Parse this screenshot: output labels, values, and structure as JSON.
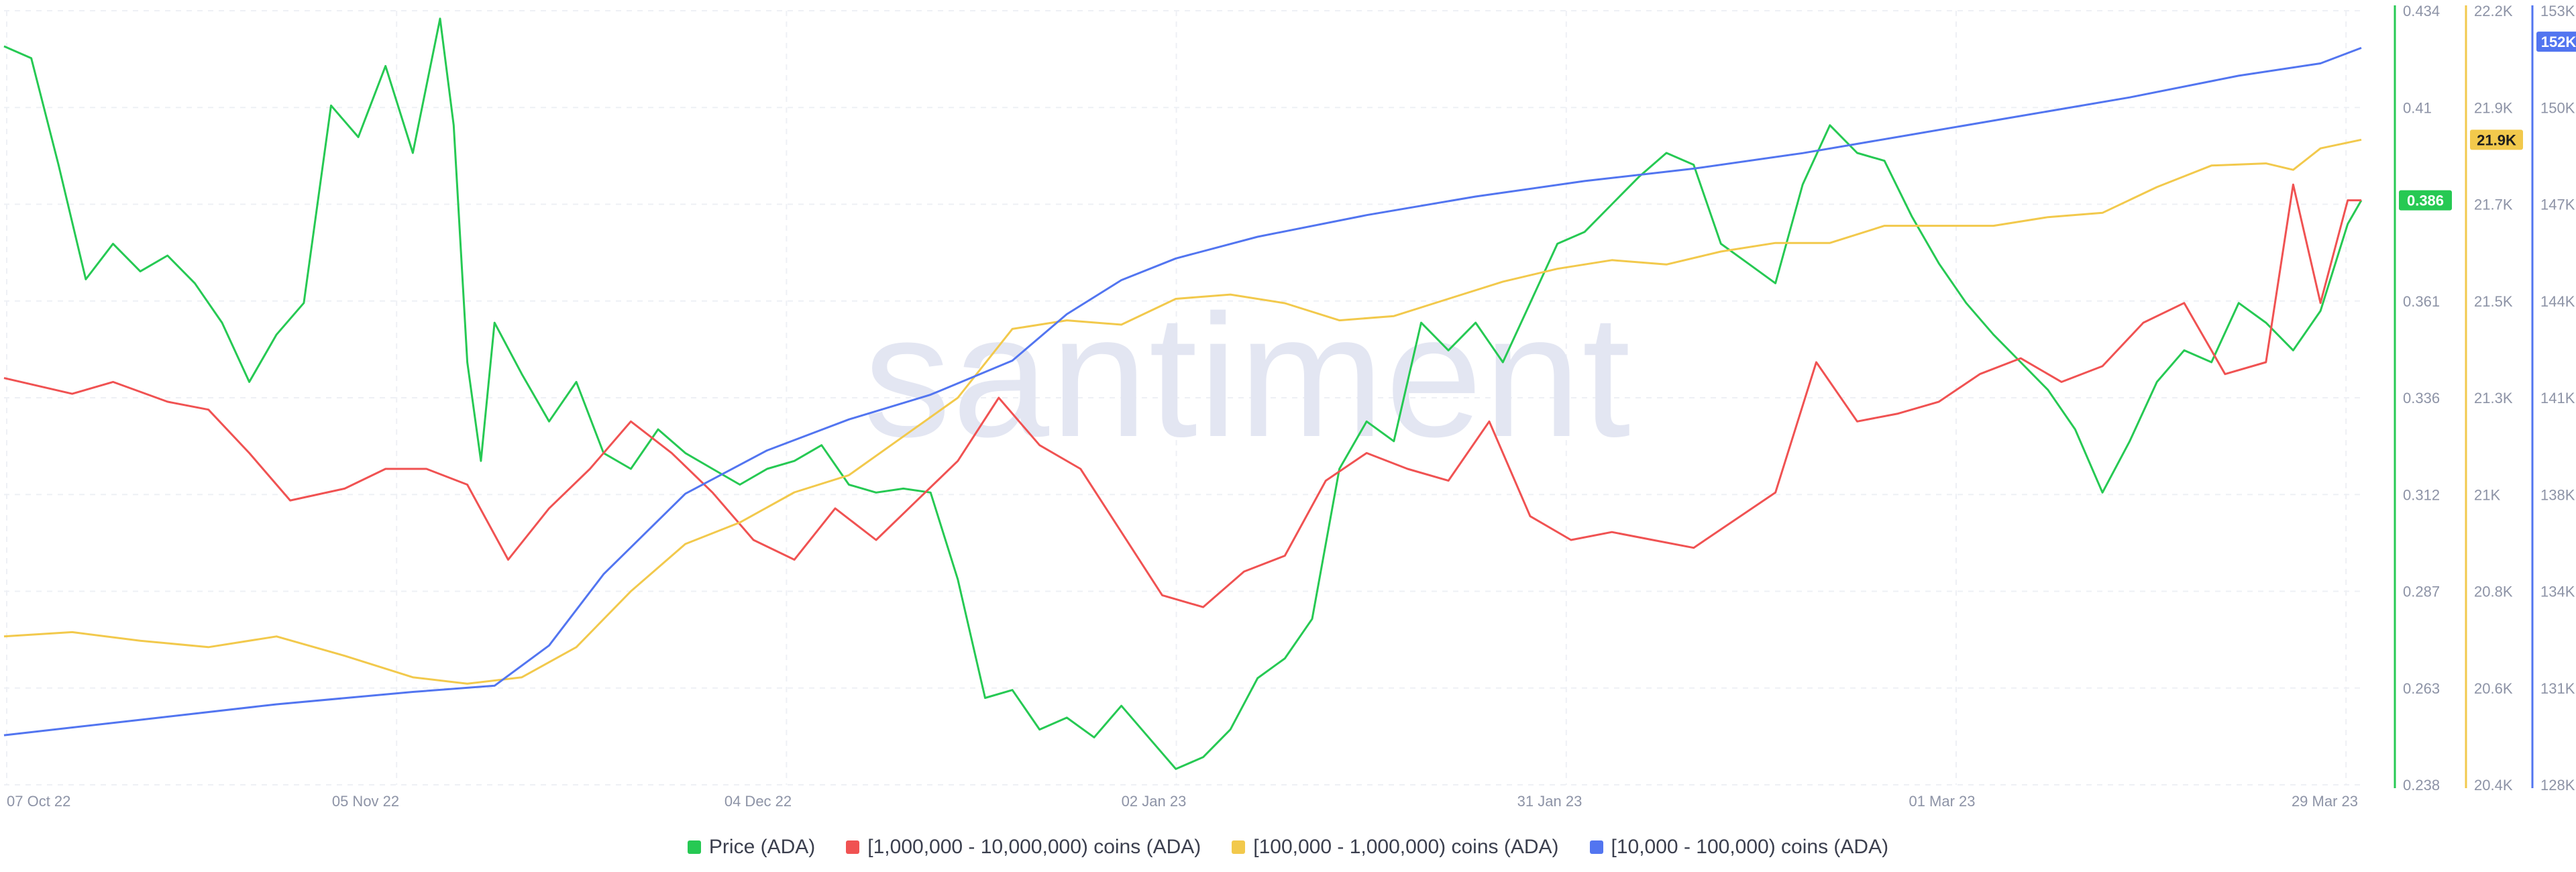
{
  "chart_data": {
    "type": "line",
    "watermark": "santiment",
    "x_ticks": [
      "07 Oct 22",
      "05 Nov 22",
      "04 Dec 22",
      "02 Jan 23",
      "31 Jan 23",
      "01 Mar 23",
      "29 Mar 23"
    ],
    "x_range": [
      "2022-10-07",
      "2023-03-29"
    ],
    "axes": {
      "price": {
        "color": "#26c953",
        "ticks": [
          "0.434",
          "0.41",
          "0.385",
          "0.361",
          "0.336",
          "0.312",
          "0.287",
          "0.263",
          "0.238"
        ],
        "range": [
          0.238,
          0.434
        ],
        "current_value": "0.386"
      },
      "holders_100k_1m": {
        "color": "#f2c94c",
        "ticks": [
          "22.2K",
          "21.9K",
          "21.7K",
          "21.5K",
          "21.3K",
          "21K",
          "20.8K",
          "20.6K",
          "20.4K"
        ],
        "range": [
          20400,
          22200
        ],
        "current_value": "21.9K"
      },
      "holders_10k_100k": {
        "color": "#5275f0",
        "ticks": [
          "153K",
          "150K",
          "147K",
          "144K",
          "141K",
          "138K",
          "134K",
          "131K",
          "128K"
        ],
        "range": [
          128000,
          153000
        ],
        "current_value": "152K"
      }
    },
    "series": [
      {
        "name": "Price (ADA)",
        "color": "#26c953",
        "axis": "price",
        "points": [
          [
            "2022-10-07",
            0.425
          ],
          [
            "2022-10-09",
            0.422
          ],
          [
            "2022-10-11",
            0.395
          ],
          [
            "2022-10-13",
            0.366
          ],
          [
            "2022-10-15",
            0.375
          ],
          [
            "2022-10-17",
            0.368
          ],
          [
            "2022-10-19",
            0.372
          ],
          [
            "2022-10-21",
            0.365
          ],
          [
            "2022-10-23",
            0.355
          ],
          [
            "2022-10-25",
            0.34
          ],
          [
            "2022-10-27",
            0.352
          ],
          [
            "2022-10-29",
            0.36
          ],
          [
            "2022-10-31",
            0.41
          ],
          [
            "2022-11-02",
            0.402
          ],
          [
            "2022-11-04",
            0.42
          ],
          [
            "2022-11-06",
            0.398
          ],
          [
            "2022-11-08",
            0.432
          ],
          [
            "2022-11-09",
            0.405
          ],
          [
            "2022-11-10",
            0.345
          ],
          [
            "2022-11-11",
            0.32
          ],
          [
            "2022-11-12",
            0.355
          ],
          [
            "2022-11-14",
            0.342
          ],
          [
            "2022-11-16",
            0.33
          ],
          [
            "2022-11-18",
            0.34
          ],
          [
            "2022-11-20",
            0.322
          ],
          [
            "2022-11-22",
            0.318
          ],
          [
            "2022-11-24",
            0.328
          ],
          [
            "2022-11-26",
            0.322
          ],
          [
            "2022-11-28",
            0.318
          ],
          [
            "2022-11-30",
            0.314
          ],
          [
            "2022-12-02",
            0.318
          ],
          [
            "2022-12-04",
            0.32
          ],
          [
            "2022-12-06",
            0.324
          ],
          [
            "2022-12-08",
            0.314
          ],
          [
            "2022-12-10",
            0.312
          ],
          [
            "2022-12-12",
            0.313
          ],
          [
            "2022-12-14",
            0.312
          ],
          [
            "2022-12-16",
            0.29
          ],
          [
            "2022-12-18",
            0.26
          ],
          [
            "2022-12-20",
            0.262
          ],
          [
            "2022-12-22",
            0.252
          ],
          [
            "2022-12-24",
            0.255
          ],
          [
            "2022-12-26",
            0.25
          ],
          [
            "2022-12-28",
            0.258
          ],
          [
            "2022-12-30",
            0.25
          ],
          [
            "2023-01-01",
            0.242
          ],
          [
            "2023-01-03",
            0.245
          ],
          [
            "2023-01-05",
            0.252
          ],
          [
            "2023-01-07",
            0.265
          ],
          [
            "2023-01-09",
            0.27
          ],
          [
            "2023-01-11",
            0.28
          ],
          [
            "2023-01-13",
            0.318
          ],
          [
            "2023-01-15",
            0.33
          ],
          [
            "2023-01-17",
            0.325
          ],
          [
            "2023-01-19",
            0.355
          ],
          [
            "2023-01-21",
            0.348
          ],
          [
            "2023-01-23",
            0.355
          ],
          [
            "2023-01-25",
            0.345
          ],
          [
            "2023-01-27",
            0.36
          ],
          [
            "2023-01-29",
            0.375
          ],
          [
            "2023-01-31",
            0.378
          ],
          [
            "2023-02-02",
            0.385
          ],
          [
            "2023-02-04",
            0.392
          ],
          [
            "2023-02-06",
            0.398
          ],
          [
            "2023-02-08",
            0.395
          ],
          [
            "2023-02-10",
            0.375
          ],
          [
            "2023-02-12",
            0.37
          ],
          [
            "2023-02-14",
            0.365
          ],
          [
            "2023-02-16",
            0.39
          ],
          [
            "2023-02-18",
            0.405
          ],
          [
            "2023-02-20",
            0.398
          ],
          [
            "2023-02-22",
            0.396
          ],
          [
            "2023-02-24",
            0.382
          ],
          [
            "2023-02-26",
            0.37
          ],
          [
            "2023-02-28",
            0.36
          ],
          [
            "2023-03-02",
            0.352
          ],
          [
            "2023-03-04",
            0.345
          ],
          [
            "2023-03-06",
            0.338
          ],
          [
            "2023-03-08",
            0.328
          ],
          [
            "2023-03-10",
            0.312
          ],
          [
            "2023-03-12",
            0.325
          ],
          [
            "2023-03-14",
            0.34
          ],
          [
            "2023-03-16",
            0.348
          ],
          [
            "2023-03-18",
            0.345
          ],
          [
            "2023-03-20",
            0.36
          ],
          [
            "2023-03-22",
            0.355
          ],
          [
            "2023-03-24",
            0.348
          ],
          [
            "2023-03-26",
            0.358
          ],
          [
            "2023-03-28",
            0.38
          ],
          [
            "2023-03-29",
            0.386
          ]
        ]
      },
      {
        "name": "[1,000,000 - 10,000,000) coins (ADA)",
        "color": "#f05252",
        "axis": "price",
        "points": [
          [
            "2022-10-07",
            0.341
          ],
          [
            "2022-10-12",
            0.337
          ],
          [
            "2022-10-15",
            0.34
          ],
          [
            "2022-10-19",
            0.335
          ],
          [
            "2022-10-22",
            0.333
          ],
          [
            "2022-10-25",
            0.322
          ],
          [
            "2022-10-28",
            0.31
          ],
          [
            "2022-11-01",
            0.313
          ],
          [
            "2022-11-04",
            0.318
          ],
          [
            "2022-11-07",
            0.318
          ],
          [
            "2022-11-10",
            0.314
          ],
          [
            "2022-11-13",
            0.295
          ],
          [
            "2022-11-16",
            0.308
          ],
          [
            "2022-11-19",
            0.318
          ],
          [
            "2022-11-22",
            0.33
          ],
          [
            "2022-11-25",
            0.322
          ],
          [
            "2022-11-28",
            0.312
          ],
          [
            "2022-12-01",
            0.3
          ],
          [
            "2022-12-04",
            0.295
          ],
          [
            "2022-12-07",
            0.308
          ],
          [
            "2022-12-10",
            0.3
          ],
          [
            "2022-12-13",
            0.31
          ],
          [
            "2022-12-16",
            0.32
          ],
          [
            "2022-12-19",
            0.336
          ],
          [
            "2022-12-22",
            0.324
          ],
          [
            "2022-12-25",
            0.318
          ],
          [
            "2022-12-28",
            0.302
          ],
          [
            "2022-12-31",
            0.286
          ],
          [
            "2023-01-03",
            0.283
          ],
          [
            "2023-01-06",
            0.292
          ],
          [
            "2023-01-09",
            0.296
          ],
          [
            "2023-01-12",
            0.315
          ],
          [
            "2023-01-15",
            0.322
          ],
          [
            "2023-01-18",
            0.318
          ],
          [
            "2023-01-21",
            0.315
          ],
          [
            "2023-01-24",
            0.33
          ],
          [
            "2023-01-27",
            0.306
          ],
          [
            "2023-01-30",
            0.3
          ],
          [
            "2023-02-02",
            0.302
          ],
          [
            "2023-02-05",
            0.3
          ],
          [
            "2023-02-08",
            0.298
          ],
          [
            "2023-02-11",
            0.305
          ],
          [
            "2023-02-14",
            0.312
          ],
          [
            "2023-02-17",
            0.345
          ],
          [
            "2023-02-20",
            0.33
          ],
          [
            "2023-02-23",
            0.332
          ],
          [
            "2023-02-26",
            0.335
          ],
          [
            "2023-03-01",
            0.342
          ],
          [
            "2023-03-04",
            0.346
          ],
          [
            "2023-03-07",
            0.34
          ],
          [
            "2023-03-10",
            0.344
          ],
          [
            "2023-03-13",
            0.355
          ],
          [
            "2023-03-16",
            0.36
          ],
          [
            "2023-03-19",
            0.342
          ],
          [
            "2023-03-22",
            0.345
          ],
          [
            "2023-03-24",
            0.39
          ],
          [
            "2023-03-26",
            0.36
          ],
          [
            "2023-03-28",
            0.386
          ],
          [
            "2023-03-29",
            0.386
          ]
        ]
      },
      {
        "name": "[100,000  - 1,000,000) coins (ADA)",
        "color": "#f2c94c",
        "axis": "holders_100k_1m",
        "points": [
          [
            "2022-10-07",
            20.745
          ],
          [
            "2022-10-12",
            20.755
          ],
          [
            "2022-10-17",
            20.735
          ],
          [
            "2022-10-22",
            20.72
          ],
          [
            "2022-10-27",
            20.745
          ],
          [
            "2022-11-01",
            20.7
          ],
          [
            "2022-11-06",
            20.65
          ],
          [
            "2022-11-10",
            20.635
          ],
          [
            "2022-11-14",
            20.65
          ],
          [
            "2022-11-18",
            20.72
          ],
          [
            "2022-11-22",
            20.85
          ],
          [
            "2022-11-26",
            20.96
          ],
          [
            "2022-11-30",
            21.01
          ],
          [
            "2022-12-04",
            21.08
          ],
          [
            "2022-12-08",
            21.12
          ],
          [
            "2022-12-12",
            21.21
          ],
          [
            "2022-12-16",
            21.3
          ],
          [
            "2022-12-20",
            21.46
          ],
          [
            "2022-12-24",
            21.48
          ],
          [
            "2022-12-28",
            21.47
          ],
          [
            "2023-01-01",
            21.53
          ],
          [
            "2023-01-05",
            21.54
          ],
          [
            "2023-01-09",
            21.52
          ],
          [
            "2023-01-13",
            21.48
          ],
          [
            "2023-01-17",
            21.49
          ],
          [
            "2023-01-21",
            21.53
          ],
          [
            "2023-01-25",
            21.57
          ],
          [
            "2023-01-29",
            21.6
          ],
          [
            "2023-02-02",
            21.62
          ],
          [
            "2023-02-06",
            21.61
          ],
          [
            "2023-02-10",
            21.64
          ],
          [
            "2023-02-14",
            21.66
          ],
          [
            "2023-02-18",
            21.66
          ],
          [
            "2023-02-22",
            21.7
          ],
          [
            "2023-02-26",
            21.7
          ],
          [
            "2023-03-02",
            21.7
          ],
          [
            "2023-03-06",
            21.72
          ],
          [
            "2023-03-10",
            21.73
          ],
          [
            "2023-03-14",
            21.79
          ],
          [
            "2023-03-18",
            21.84
          ],
          [
            "2023-03-22",
            21.845
          ],
          [
            "2023-03-24",
            21.83
          ],
          [
            "2023-03-26",
            21.88
          ],
          [
            "2023-03-29",
            21.9
          ]
        ]
      },
      {
        "name": "[10,000 - 100,000) coins (ADA)",
        "color": "#5275f0",
        "axis": "holders_10k_100k",
        "points": [
          [
            "2022-10-07",
            129.6
          ],
          [
            "2022-10-17",
            130.1
          ],
          [
            "2022-10-27",
            130.6
          ],
          [
            "2022-11-06",
            131.0
          ],
          [
            "2022-11-12",
            131.2
          ],
          [
            "2022-11-16",
            132.5
          ],
          [
            "2022-11-20",
            134.8
          ],
          [
            "2022-11-26",
            137.4
          ],
          [
            "2022-12-02",
            138.8
          ],
          [
            "2022-12-08",
            139.8
          ],
          [
            "2022-12-14",
            140.6
          ],
          [
            "2022-12-20",
            141.7
          ],
          [
            "2022-12-24",
            143.2
          ],
          [
            "2022-12-28",
            144.3
          ],
          [
            "2023-01-01",
            145.0
          ],
          [
            "2023-01-07",
            145.7
          ],
          [
            "2023-01-15",
            146.4
          ],
          [
            "2023-01-23",
            147.0
          ],
          [
            "2023-01-31",
            147.5
          ],
          [
            "2023-02-08",
            147.9
          ],
          [
            "2023-02-16",
            148.4
          ],
          [
            "2023-02-24",
            149.0
          ],
          [
            "2023-03-04",
            149.6
          ],
          [
            "2023-03-12",
            150.2
          ],
          [
            "2023-03-20",
            150.9
          ],
          [
            "2023-03-26",
            151.3
          ],
          [
            "2023-03-29",
            151.8
          ]
        ]
      }
    ]
  }
}
